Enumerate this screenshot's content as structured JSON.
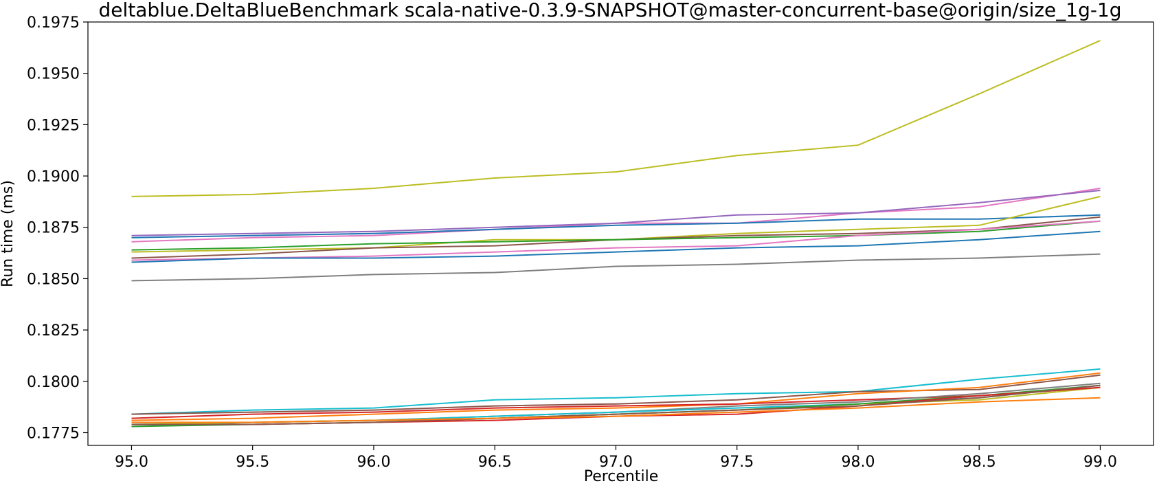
{
  "chart_data": {
    "type": "line",
    "title": "deltablue.DeltaBlueBenchmark scala-native-0.3.9-SNAPSHOT@master-concurrent-base@origin/size_1g-1g",
    "xlabel": "Percentile",
    "ylabel": "Run time (ms)",
    "xlim": [
      94.82,
      99.22
    ],
    "ylim": [
      0.17688,
      0.1975
    ],
    "x_ticks": [
      95.0,
      95.5,
      96.0,
      96.5,
      97.0,
      97.5,
      98.0,
      98.5,
      99.0
    ],
    "x_tick_labels": [
      "95.0",
      "95.5",
      "96.0",
      "96.5",
      "97.0",
      "97.5",
      "98.0",
      "98.5",
      "99.0"
    ],
    "y_ticks": [
      0.1775,
      0.18,
      0.1825,
      0.185,
      0.1875,
      0.19,
      0.1925,
      0.195,
      0.1975
    ],
    "y_tick_labels": [
      "0.1775",
      "0.1800",
      "0.1825",
      "0.1850",
      "0.1875",
      "0.1900",
      "0.1925",
      "0.1950",
      "0.1975"
    ],
    "grid": false,
    "legend": "none",
    "x": [
      95.0,
      95.5,
      96.0,
      96.5,
      97.0,
      97.5,
      98.0,
      98.5,
      99.0
    ],
    "series": [
      {
        "color": "#bcbd22",
        "values": [
          0.189,
          0.1891,
          0.1894,
          0.1899,
          0.1902,
          0.191,
          0.1915,
          0.194,
          0.1966
        ]
      },
      {
        "color": "#e377c2",
        "values": [
          0.1868,
          0.187,
          0.1871,
          0.1874,
          0.1877,
          0.1877,
          0.1882,
          0.1885,
          0.1894
        ]
      },
      {
        "color": "#9467bd",
        "values": [
          0.1871,
          0.1872,
          0.1873,
          0.1875,
          0.1877,
          0.1881,
          0.1882,
          0.1887,
          0.1893
        ]
      },
      {
        "color": "#1f77b4",
        "values": [
          0.187,
          0.1871,
          0.1872,
          0.1874,
          0.1876,
          0.1877,
          0.1879,
          0.1879,
          0.1881
        ]
      },
      {
        "color": "#bcbd22",
        "values": [
          0.1863,
          0.1864,
          0.1865,
          0.1869,
          0.1869,
          0.1872,
          0.1874,
          0.1876,
          0.189
        ]
      },
      {
        "color": "#8c564b",
        "values": [
          0.186,
          0.1862,
          0.1865,
          0.1866,
          0.1869,
          0.1871,
          0.1872,
          0.1874,
          0.188
        ]
      },
      {
        "color": "#2ca02c",
        "values": [
          0.1864,
          0.1865,
          0.1867,
          0.1868,
          0.1869,
          0.187,
          0.1871,
          0.1873,
          0.1878
        ]
      },
      {
        "color": "#e377c2",
        "values": [
          0.1859,
          0.186,
          0.1861,
          0.1863,
          0.1865,
          0.1866,
          0.1871,
          0.1874,
          0.1878
        ]
      },
      {
        "color": "#1f77b4",
        "values": [
          0.1858,
          0.186,
          0.186,
          0.1861,
          0.1863,
          0.1865,
          0.1866,
          0.1869,
          0.1873
        ]
      },
      {
        "color": "#7f7f7f",
        "values": [
          0.1849,
          0.185,
          0.1852,
          0.1853,
          0.1856,
          0.1857,
          0.1859,
          0.186,
          0.1862
        ]
      },
      {
        "color": "#17becf",
        "values": [
          0.1784,
          0.1786,
          0.1787,
          0.1791,
          0.1792,
          0.1794,
          0.1795,
          0.1801,
          0.1806
        ]
      },
      {
        "color": "#8c564b",
        "values": [
          0.1784,
          0.1785,
          0.1786,
          0.1788,
          0.1789,
          0.1791,
          0.1795,
          0.1796,
          0.1803
        ]
      },
      {
        "color": "#ff7f0e",
        "values": [
          0.1781,
          0.1782,
          0.1784,
          0.1786,
          0.1787,
          0.1789,
          0.1794,
          0.1797,
          0.1804
        ]
      },
      {
        "color": "#d62728",
        "values": [
          0.1782,
          0.1784,
          0.1785,
          0.1787,
          0.1788,
          0.1789,
          0.1791,
          0.1793,
          0.1797
        ]
      },
      {
        "color": "#7f7f7f",
        "values": [
          0.1778,
          0.178,
          0.1781,
          0.1783,
          0.1785,
          0.1788,
          0.179,
          0.1794,
          0.1799
        ]
      },
      {
        "color": "#17becf",
        "values": [
          0.1779,
          0.178,
          0.1781,
          0.1783,
          0.1785,
          0.1787,
          0.1789,
          0.1792,
          0.1798
        ]
      },
      {
        "color": "#bcbd22",
        "values": [
          0.1779,
          0.178,
          0.1781,
          0.1782,
          0.1784,
          0.1786,
          0.1789,
          0.1791,
          0.1797
        ]
      },
      {
        "color": "#2ca02c",
        "values": [
          0.1778,
          0.1779,
          0.178,
          0.1782,
          0.1784,
          0.1786,
          0.1789,
          0.1793,
          0.1798
        ]
      },
      {
        "color": "#d62728",
        "values": [
          0.1779,
          0.1779,
          0.178,
          0.1781,
          0.1783,
          0.1784,
          0.1788,
          0.1793,
          0.1797
        ]
      },
      {
        "color": "#8c564b",
        "values": [
          0.1779,
          0.1779,
          0.178,
          0.1782,
          0.1784,
          0.1786,
          0.1788,
          0.1792,
          0.1798
        ]
      },
      {
        "color": "#ff7f0e",
        "values": [
          0.178,
          0.178,
          0.1781,
          0.1782,
          0.1783,
          0.1785,
          0.1787,
          0.179,
          0.1792
        ]
      }
    ]
  }
}
